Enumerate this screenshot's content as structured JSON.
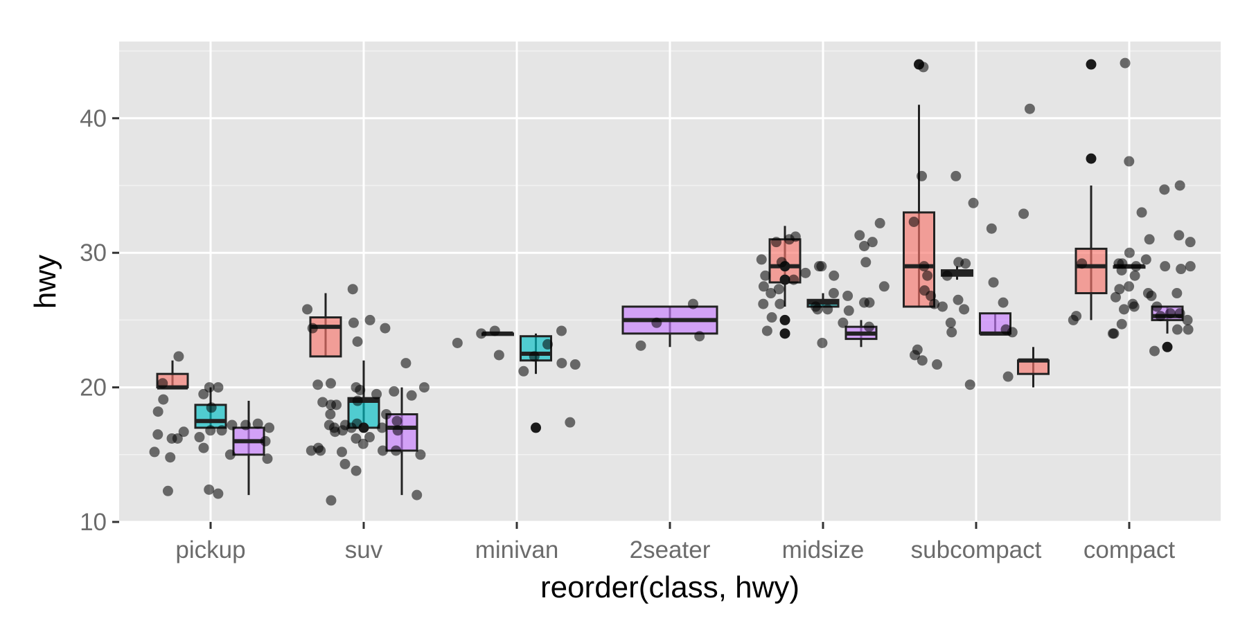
{
  "chart_data": {
    "type": "boxplot",
    "xlabel": "reorder(class, hwy)",
    "ylabel": "hwy",
    "ylim": [
      10,
      45.7
    ],
    "yticks": [
      10,
      20,
      30,
      40
    ],
    "grid": true,
    "categories": [
      "pickup",
      "suv",
      "minivan",
      "2seater",
      "midsize",
      "subcompact",
      "compact"
    ],
    "group_colors": [
      "#F8766D",
      "#00BFC4",
      "#C77CFF"
    ],
    "boxes": [
      {
        "category": "pickup",
        "group": 0,
        "q1": 20,
        "median": 20,
        "q3": 21,
        "lo": 20,
        "hi": 22,
        "outliers": []
      },
      {
        "category": "pickup",
        "group": 1,
        "q1": 17,
        "median": 17.5,
        "q3": 18.7,
        "lo": 17,
        "hi": 20,
        "outliers": []
      },
      {
        "category": "pickup",
        "group": 2,
        "q1": 15,
        "median": 16,
        "q3": 17,
        "lo": 12,
        "hi": 19,
        "outliers": []
      },
      {
        "category": "suv",
        "group": 0,
        "q1": 22.3,
        "median": 24.5,
        "q3": 25.2,
        "lo": 22.3,
        "hi": 27,
        "outliers": []
      },
      {
        "category": "suv",
        "group": 1,
        "q1": 17,
        "median": 19,
        "q3": 19.2,
        "lo": 17,
        "hi": 22,
        "outliers": [
          17
        ]
      },
      {
        "category": "suv",
        "group": 2,
        "q1": 15.3,
        "median": 17,
        "q3": 18,
        "lo": 12,
        "hi": 20,
        "outliers": []
      },
      {
        "category": "minivan",
        "group": 0,
        "q1": 24,
        "median": 24,
        "q3": 24,
        "lo": 24,
        "hi": 24,
        "outliers": []
      },
      {
        "category": "minivan",
        "group": 1,
        "q1": 22,
        "median": 22.5,
        "q3": 23.8,
        "lo": 21,
        "hi": 24,
        "outliers": [
          17
        ]
      },
      {
        "category": "2seater",
        "group": 2,
        "q1": 24,
        "median": 25,
        "q3": 26,
        "lo": 23,
        "hi": 26,
        "outliers": []
      },
      {
        "category": "midsize",
        "group": 0,
        "q1": 27.8,
        "median": 29,
        "q3": 31,
        "lo": 26,
        "hi": 32,
        "outliers": [
          29,
          28,
          25,
          24
        ]
      },
      {
        "category": "midsize",
        "group": 1,
        "q1": 26,
        "median": 26.3,
        "q3": 26.5,
        "lo": 26,
        "hi": 27,
        "outliers": []
      },
      {
        "category": "midsize",
        "group": 2,
        "q1": 23.6,
        "median": 24,
        "q3": 24.5,
        "lo": 23,
        "hi": 25,
        "outliers": []
      },
      {
        "category": "subcompact",
        "group": 0,
        "q1": 26,
        "median": 29,
        "q3": 33,
        "lo": 26,
        "hi": 41,
        "outliers": [
          44
        ]
      },
      {
        "category": "subcompact",
        "group": 1,
        "q1": 28.3,
        "median": 28.5,
        "q3": 28.7,
        "lo": 28,
        "hi": 29,
        "outliers": []
      },
      {
        "category": "subcompact",
        "group": 2,
        "q1": 24,
        "median": 24,
        "q3": 25.5,
        "lo": 24,
        "hi": 25.5,
        "outliers": []
      },
      {
        "category": "subcompact",
        "group": 3,
        "q1": 21,
        "median": 22,
        "q3": 22,
        "lo": 20,
        "hi": 23,
        "outliers": []
      },
      {
        "category": "compact",
        "group": 0,
        "q1": 27,
        "median": 29,
        "q3": 30.3,
        "lo": 25,
        "hi": 35,
        "outliers": [
          44,
          37
        ]
      },
      {
        "category": "compact",
        "group": 1,
        "q1": 29,
        "median": 29,
        "q3": 29,
        "lo": 29,
        "hi": 29,
        "outliers": []
      },
      {
        "category": "compact",
        "group": 2,
        "q1": 25,
        "median": 25.3,
        "q3": 26,
        "lo": 24,
        "hi": 26,
        "outliers": [
          23
        ]
      }
    ],
    "points": [
      {
        "category": "pickup",
        "values": [
          20,
          20,
          20.3,
          22.3,
          19.5,
          18.5,
          18.2,
          17.3,
          16.8,
          16.3,
          16.7,
          17.2,
          15,
          16.5,
          16.8,
          16.2,
          17.2,
          12.3,
          12.1,
          12.4,
          14.8,
          15.2,
          16,
          17,
          19.1,
          15.5,
          14.7,
          16.2
        ]
      },
      {
        "category": "suv",
        "values": [
          24.8,
          25,
          24.4,
          18.7,
          18.9,
          20,
          17.3,
          18,
          16.3,
          16.8,
          15.3,
          16.8,
          17.2,
          14.3,
          15.3,
          12,
          11.6,
          19.4,
          19.8,
          20.3,
          19.5,
          17,
          15.3,
          15.3,
          15.5,
          17.2,
          23.4,
          24.4,
          25.8,
          27.3,
          18,
          17,
          15,
          15.2,
          16.2,
          15.8,
          20,
          21.8,
          19,
          13.8,
          17,
          18.7,
          19.7,
          20.2,
          16.7,
          17.5
        ]
      },
      {
        "category": "minivan",
        "values": [
          24.2,
          21.7,
          17.4,
          21.8,
          23.2,
          22.3,
          21.2,
          23.3,
          24.2,
          22.4,
          24
        ]
      },
      {
        "category": "2seater",
        "values": [
          24.8,
          26.2,
          23.8,
          23.1
        ]
      },
      {
        "category": "midsize",
        "values": [
          32.2,
          29.5,
          28.5,
          27,
          26,
          25.2,
          27.5,
          25.8,
          26.3,
          28.3,
          29,
          30.8,
          31.3,
          30.8,
          28,
          27.5,
          26.2,
          25.7,
          26.8,
          24.8,
          24.5,
          31,
          30.5,
          29.3,
          28.3,
          27,
          26.2,
          25.8,
          26.3,
          29.3,
          27.3,
          23.3,
          24.2,
          31.2,
          29
        ]
      },
      {
        "category": "subcompact",
        "values": [
          35.7,
          26.5,
          26,
          24.8,
          24.1,
          26.8,
          26.2,
          32.3,
          31.8,
          27.2,
          25.8,
          28.3,
          33.7,
          29.2,
          22.4,
          20.8,
          20.2,
          24.3,
          35.7,
          40.7,
          26.3,
          27.8,
          28.3,
          29.3,
          43.8,
          32.9,
          29,
          22,
          21.7,
          24.1,
          22.8
        ]
      },
      {
        "category": "compact",
        "values": [
          33,
          28.7,
          24,
          26,
          25.5,
          26.2,
          27.3,
          29.2,
          31.3,
          31,
          36.8,
          35,
          26.8,
          25.8,
          25,
          24.3,
          29.2,
          27.5,
          22.7,
          29,
          28.8,
          28.3,
          30.8,
          29.5,
          25.5,
          24.7,
          25.3,
          24.3,
          29,
          27,
          26.7,
          25.3,
          34.7,
          30,
          29.2,
          27,
          26,
          25,
          24,
          44.1,
          29
        ]
      }
    ]
  }
}
